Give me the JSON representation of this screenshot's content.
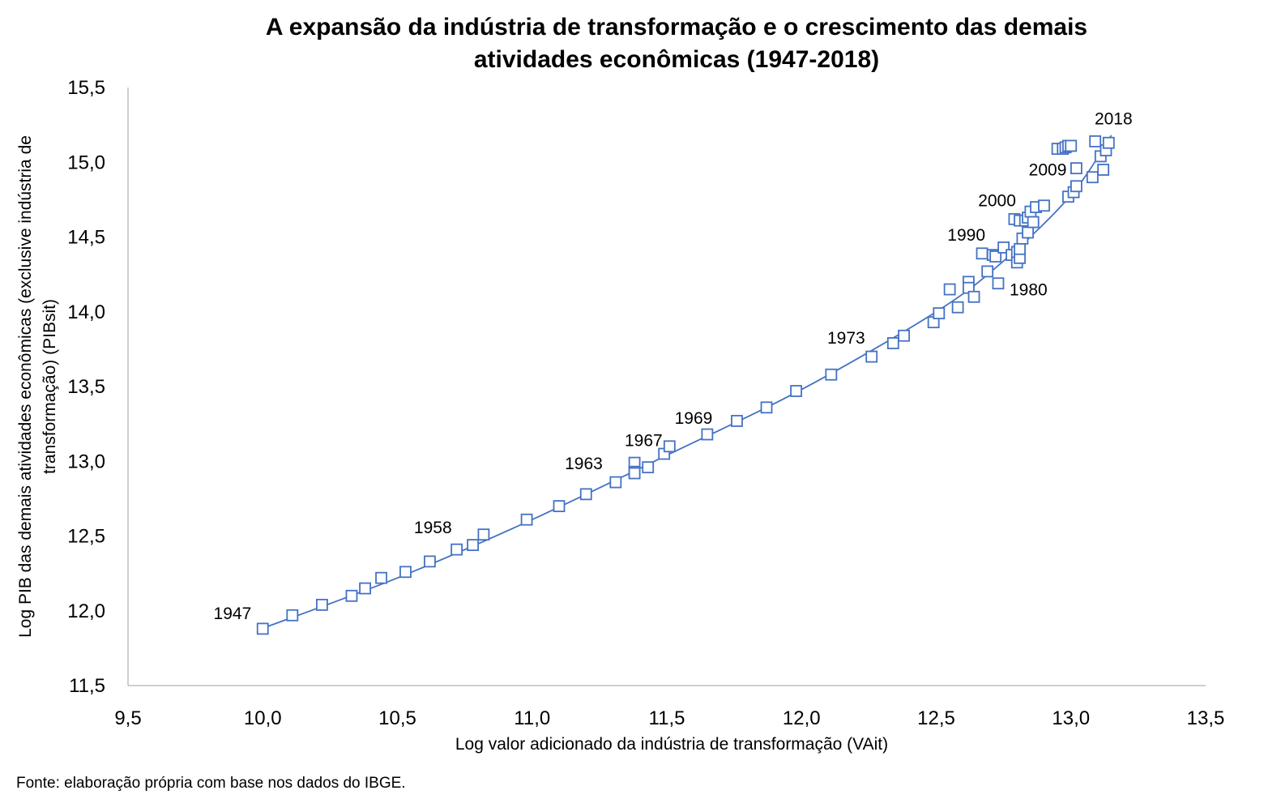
{
  "chart_data": {
    "type": "scatter",
    "title_lines": [
      "A expansão da indústria de transformação e o crescimento das demais",
      "atividades econômicas (1947-2018)"
    ],
    "xlabel": "Log valor adicionado da indústria de transformação (VAit)",
    "ylabel_lines": [
      "Log PIB das demais atividades econômicas (exclusive indústria de",
      "transformação) (PIBsit)"
    ],
    "xlim": [
      9.5,
      13.5
    ],
    "ylim": [
      11.5,
      15.5
    ],
    "x_ticks": [
      "9,5",
      "10,0",
      "10,5",
      "11,0",
      "11,5",
      "12,0",
      "12,5",
      "13,0",
      "13,5"
    ],
    "y_ticks": [
      "11,5",
      "12,0",
      "12,5",
      "13,0",
      "13,5",
      "14,0",
      "14,5",
      "15,0",
      "15,5"
    ],
    "grid": false,
    "marker": "open-square",
    "series_color": "#4472C4",
    "points": [
      [
        10.0,
        11.88
      ],
      [
        10.11,
        11.97
      ],
      [
        10.22,
        12.04
      ],
      [
        10.33,
        12.1
      ],
      [
        10.38,
        12.15
      ],
      [
        10.44,
        12.22
      ],
      [
        10.53,
        12.26
      ],
      [
        10.62,
        12.33
      ],
      [
        10.72,
        12.41
      ],
      [
        10.78,
        12.44
      ],
      [
        10.82,
        12.51
      ],
      [
        10.98,
        12.61
      ],
      [
        11.1,
        12.7
      ],
      [
        11.2,
        12.78
      ],
      [
        11.31,
        12.86
      ],
      [
        11.38,
        12.99
      ],
      [
        11.38,
        12.93
      ],
      [
        11.38,
        12.92
      ],
      [
        11.43,
        12.96
      ],
      [
        11.49,
        13.05
      ],
      [
        11.51,
        13.1
      ],
      [
        11.65,
        13.18
      ],
      [
        11.76,
        13.27
      ],
      [
        11.87,
        13.36
      ],
      [
        11.98,
        13.47
      ],
      [
        12.11,
        13.58
      ],
      [
        12.26,
        13.7
      ],
      [
        12.34,
        13.79
      ],
      [
        12.38,
        13.84
      ],
      [
        12.49,
        13.93
      ],
      [
        12.51,
        13.99
      ],
      [
        12.55,
        14.15
      ],
      [
        12.58,
        14.03
      ],
      [
        12.62,
        14.2
      ],
      [
        12.62,
        14.16
      ],
      [
        12.64,
        14.1
      ],
      [
        12.67,
        14.39
      ],
      [
        12.69,
        14.27
      ],
      [
        12.71,
        14.38
      ],
      [
        12.72,
        14.37
      ],
      [
        12.73,
        14.19
      ],
      [
        12.75,
        14.43
      ],
      [
        12.78,
        14.38
      ],
      [
        12.79,
        14.62
      ],
      [
        12.8,
        14.33
      ],
      [
        12.8,
        14.4
      ],
      [
        12.81,
        14.36
      ],
      [
        12.81,
        14.42
      ],
      [
        12.81,
        14.61
      ],
      [
        12.82,
        14.49
      ],
      [
        12.83,
        14.61
      ],
      [
        12.84,
        14.53
      ],
      [
        12.84,
        14.63
      ],
      [
        12.85,
        14.67
      ],
      [
        12.86,
        14.6
      ],
      [
        12.87,
        14.7
      ],
      [
        12.9,
        14.71
      ],
      [
        12.95,
        15.09
      ],
      [
        12.97,
        15.09
      ],
      [
        12.98,
        15.1
      ],
      [
        12.99,
        15.11
      ],
      [
        13.0,
        15.11
      ],
      [
        12.99,
        14.77
      ],
      [
        13.01,
        14.8
      ],
      [
        13.02,
        14.84
      ],
      [
        13.02,
        14.96
      ],
      [
        13.08,
        14.9
      ],
      [
        13.09,
        15.14
      ],
      [
        13.11,
        15.04
      ],
      [
        13.12,
        14.95
      ],
      [
        13.13,
        15.08
      ],
      [
        13.14,
        15.13
      ]
    ],
    "trend": [
      [
        9.98,
        11.87
      ],
      [
        10.5,
        12.22
      ],
      [
        11.0,
        12.61
      ],
      [
        11.5,
        13.04
      ],
      [
        12.0,
        13.48
      ],
      [
        12.5,
        14.0
      ],
      [
        12.75,
        14.34
      ],
      [
        13.0,
        14.78
      ],
      [
        13.15,
        15.18
      ]
    ],
    "annotations": [
      {
        "text": "1947",
        "x": 10.0,
        "y": 11.88
      },
      {
        "text": "1958",
        "x": 10.72,
        "y": 12.41
      },
      {
        "text": "1963",
        "x": 11.31,
        "y": 12.86
      },
      {
        "text": "1967",
        "x": 11.43,
        "y": 12.96
      },
      {
        "text": "1969",
        "x": 11.51,
        "y": 13.1
      },
      {
        "text": "1973",
        "x": 12.26,
        "y": 13.7
      },
      {
        "text": "1980",
        "x": 12.73,
        "y": 14.19
      },
      {
        "text": "1990",
        "x": 12.67,
        "y": 14.39
      },
      {
        "text": "2000",
        "x": 12.79,
        "y": 14.62
      },
      {
        "text": "2009",
        "x": 13.02,
        "y": 14.96
      },
      {
        "text": "2018",
        "x": 13.14,
        "y": 15.13
      }
    ]
  },
  "source_note": "Fonte: elaboração própria com base nos dados do IBGE."
}
